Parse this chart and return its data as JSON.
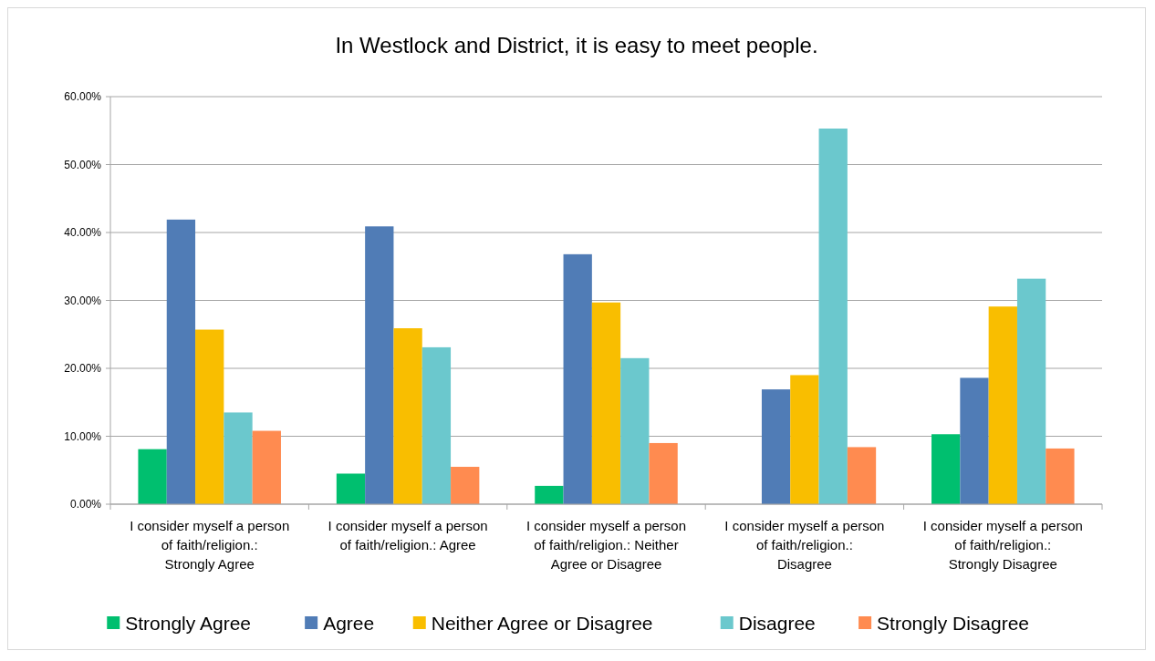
{
  "chart_data": {
    "type": "bar",
    "title": "In Westlock and District, it is easy to meet people.",
    "categories": [
      "I consider myself a person of faith/religion.: Strongly Agree",
      "I consider myself a person of faith/religion.: Agree",
      "I consider myself a person of faith/religion.: Neither Agree or Disagree",
      "I consider myself a person of faith/religion.: Disagree",
      "I consider myself a person of faith/religion.: Strongly Disagree"
    ],
    "series": [
      {
        "name": "Strongly Agree",
        "color": "#00bf6f",
        "values": [
          8.1,
          4.5,
          2.7,
          0,
          10.3
        ]
      },
      {
        "name": "Agree",
        "color": "#507cb6",
        "values": [
          41.9,
          40.9,
          36.8,
          16.9,
          18.6
        ]
      },
      {
        "name": "Neither Agree or Disagree",
        "color": "#f9be00",
        "values": [
          25.7,
          25.9,
          29.7,
          19.0,
          29.1
        ]
      },
      {
        "name": "Disagree",
        "color": "#6bc8cd",
        "values": [
          13.5,
          23.1,
          21.5,
          55.3,
          33.2
        ]
      },
      {
        "name": "Strongly Disagree",
        "color": "#ff8b50",
        "values": [
          10.8,
          5.5,
          9.0,
          8.4,
          8.2
        ]
      }
    ],
    "ylim": [
      0,
      60
    ],
    "yticks": [
      {
        "value": 0,
        "label": "0.00%"
      },
      {
        "value": 10,
        "label": "10.00%"
      },
      {
        "value": 20,
        "label": "20.00%"
      },
      {
        "value": 30,
        "label": "30.00%"
      },
      {
        "value": 40,
        "label": "40.00%"
      },
      {
        "value": 50,
        "label": "50.00%"
      },
      {
        "value": 60,
        "label": "60.00%"
      }
    ],
    "grid": "y",
    "legend": "bottom"
  }
}
